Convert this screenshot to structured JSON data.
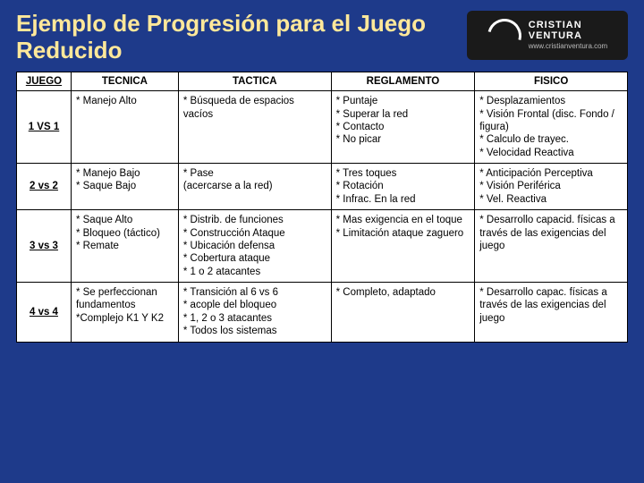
{
  "colors": {
    "pageBg": "#1e3a8a",
    "titleColor": "#ffe89a",
    "tableBg": "#ffffff",
    "tableText": "#000000",
    "tableBorder": "#000000"
  },
  "title": "Ejemplo de Progresión para el Juego Reducido",
  "logo": {
    "l1": "CRISTIAN",
    "l2": "VENTURA",
    "l3": "www.cristianventura.com"
  },
  "headers": [
    "JUEGO",
    "TECNICA",
    "TACTICA",
    "REGLAMENTO",
    "FISICO"
  ],
  "rows": [
    {
      "label": "1 VS 1",
      "tecnica": "* Manejo Alto",
      "tactica": "* Búsqueda de espacios vacíos",
      "reglamento": "* Puntaje\n* Superar la red\n* Contacto\n* No picar",
      "fisico": "* Desplazamientos\n* Visión Frontal (disc. Fondo / figura)\n* Calculo de trayec.\n* Velocidad Reactiva"
    },
    {
      "label": "2 vs 2",
      "tecnica": "* Manejo Bajo\n* Saque Bajo",
      "tactica": "* Pase\n(acercarse a la red)",
      "reglamento": "* Tres toques\n* Rotación\n* Infrac. En la red",
      "fisico": "* Anticipación Perceptiva\n* Visión Periférica\n* Vel. Reactiva"
    },
    {
      "label": "3 vs 3",
      "tecnica": "* Saque Alto\n* Bloqueo (táctico)\n* Remate",
      "tactica": "* Distrib. de funciones\n* Construcción Ataque\n* Ubicación defensa\n* Cobertura ataque\n* 1 o 2 atacantes",
      "reglamento": "* Mas exigencia en el toque\n* Limitación ataque zaguero",
      "fisico": "* Desarrollo capacid. físicas a través de las exigencias del juego"
    },
    {
      "label": "4 vs 4",
      "tecnica": "* Se perfeccionan fundamentos\n*Complejo K1 Y K2",
      "tactica": "* Transición al 6 vs 6\n* acople del bloqueo\n* 1, 2 o 3 atacantes\n* Todos los sistemas",
      "reglamento": "* Completo, adaptado",
      "fisico": "* Desarrollo capac. físicas a través de las exigencias del juego"
    }
  ]
}
